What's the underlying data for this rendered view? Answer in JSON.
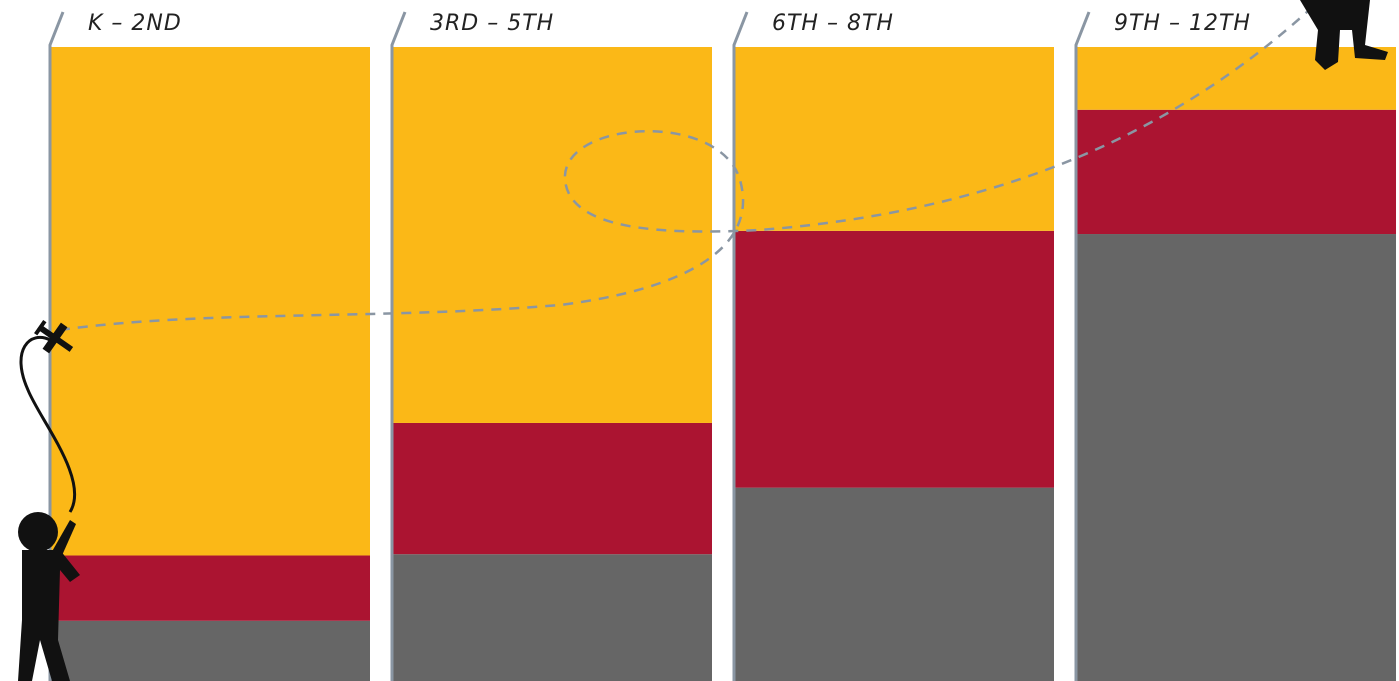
{
  "chart_data": {
    "type": "bar",
    "stacked": true,
    "categories": [
      "K – 2ND",
      "3RD – 5TH",
      "6TH – 8TH",
      "9TH – 12TH"
    ],
    "series": [
      {
        "color": "#666666",
        "values": [
          9.5,
          20,
          30.5,
          70.5
        ]
      },
      {
        "color": "#ab1431",
        "values": [
          10.3,
          20.7,
          40.5,
          19.6
        ]
      },
      {
        "color": "#fbb817",
        "values": [
          80.2,
          59.3,
          29,
          9.9
        ]
      }
    ],
    "ylim": [
      0,
      100
    ]
  }
}
